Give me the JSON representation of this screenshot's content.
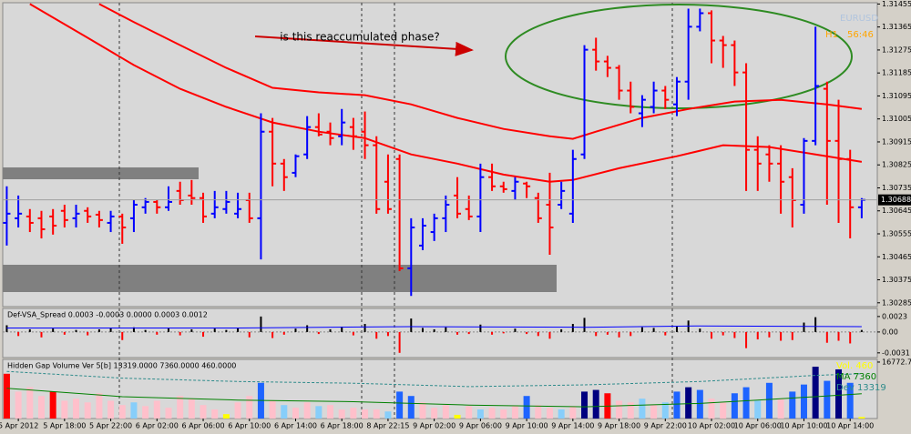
{
  "chart_data": [
    {
      "type": "ohlc",
      "symbol": "EURUSD",
      "timeframe": "H1",
      "timer": "56:46",
      "annotation": "is this reaccumulated phase?",
      "xlim": [
        -0.35,
        75.35
      ],
      "ylim": [
        1.3027,
        1.3146
      ],
      "yticks": [
        1.31455,
        1.31365,
        1.31275,
        1.31185,
        1.31095,
        1.31005,
        1.30915,
        1.30825,
        1.30735,
        1.30645,
        1.30555,
        1.30465,
        1.30375,
        1.30285
      ],
      "last_price": 1.30688,
      "color_up": "#0000ff",
      "color_down": "#ff0000",
      "open": [
        1.30598,
        1.30616,
        1.30623,
        1.30616,
        1.30623,
        1.30645,
        1.30616,
        1.30645,
        1.3063,
        1.30598,
        1.30623,
        1.30616,
        1.30659,
        1.3068,
        1.30659,
        1.30723,
        1.30705,
        1.30695,
        1.30634,
        1.30652,
        1.30634,
        1.30687,
        1.30616,
        1.30955,
        1.3083,
        1.30794,
        1.30866,
        1.30973,
        1.30955,
        1.30937,
        1.30973,
        1.30955,
        1.30902,
        1.30759,
        1.30848,
        1.3042,
        1.30509,
        1.30562,
        1.30616,
        1.30705,
        1.30652,
        1.30623,
        1.30777,
        1.30741,
        1.30723,
        1.30752,
        1.30695,
        1.30669,
        1.30669,
        1.30634,
        1.30866,
        1.31276,
        1.3123,
        1.31205,
        1.31116,
        1.31027,
        1.31052,
        1.31116,
        1.31062,
        1.31151,
        1.31366,
        1.31419,
        1.31312,
        1.31294,
        1.31187,
        1.30884,
        1.30866,
        1.3083,
        1.30777,
        1.30669,
        1.30919,
        1.31123,
        1.30919,
        1.30848,
        1.30659
      ],
      "high": [
        1.30741,
        1.30705,
        1.30652,
        1.30645,
        1.30652,
        1.30669,
        1.30669,
        1.30659,
        1.30645,
        1.30645,
        1.30634,
        1.30687,
        1.30695,
        1.30687,
        1.30741,
        1.30759,
        1.30766,
        1.30716,
        1.30723,
        1.30723,
        1.30716,
        1.30716,
        1.31027,
        1.31009,
        1.30848,
        1.30866,
        1.31016,
        1.31027,
        1.30991,
        1.31044,
        1.31009,
        1.31034,
        1.30937,
        1.30866,
        1.30866,
        1.30616,
        1.30616,
        1.30634,
        1.30705,
        1.30777,
        1.30705,
        1.3083,
        1.3083,
        1.30759,
        1.30777,
        1.30759,
        1.30716,
        1.30794,
        1.30759,
        1.30884,
        1.31294,
        1.31323,
        1.31252,
        1.31216,
        1.31151,
        1.31098,
        1.31151,
        1.31134,
        1.31169,
        1.31437,
        1.31437,
        1.3143,
        1.3133,
        1.31312,
        1.31223,
        1.30937,
        1.30902,
        1.30902,
        1.30812,
        1.3093,
        1.31366,
        1.31151,
        1.3108,
        1.30884,
        1.30695
      ],
      "low": [
        1.30509,
        1.3058,
        1.30562,
        1.30537,
        1.30552,
        1.3058,
        1.3058,
        1.30598,
        1.3058,
        1.30562,
        1.30516,
        1.30562,
        1.30634,
        1.30634,
        1.30645,
        1.30669,
        1.30669,
        1.30598,
        1.30616,
        1.30634,
        1.30616,
        1.30598,
        1.30455,
        1.30741,
        1.30723,
        1.30777,
        1.30848,
        1.30937,
        1.30902,
        1.30902,
        1.30884,
        1.30848,
        1.30634,
        1.30634,
        1.30409,
        1.30312,
        1.30491,
        1.30527,
        1.30562,
        1.30616,
        1.30609,
        1.30562,
        1.30723,
        1.30716,
        1.30687,
        1.30695,
        1.30598,
        1.30473,
        1.30652,
        1.30598,
        1.30848,
        1.31194,
        1.31169,
        1.3108,
        1.31027,
        1.30973,
        1.31027,
        1.31044,
        1.31016,
        1.3108,
        1.31348,
        1.31223,
        1.31205,
        1.31134,
        1.30723,
        1.30723,
        1.30759,
        1.30634,
        1.3058,
        1.30634,
        1.30902,
        1.30669,
        1.30598,
        1.30537,
        1.30616
      ],
      "close": [
        1.30634,
        1.30634,
        1.30598,
        1.30573,
        1.30587,
        1.30609,
        1.30634,
        1.30623,
        1.30609,
        1.30623,
        1.3058,
        1.30669,
        1.3068,
        1.30659,
        1.3068,
        1.30687,
        1.30695,
        1.30623,
        1.30659,
        1.3068,
        1.30652,
        1.30616,
        1.30955,
        1.3083,
        1.30777,
        1.30859,
        1.30973,
        1.30944,
        1.3093,
        1.30991,
        1.30937,
        1.30902,
        1.30652,
        1.30652,
        1.3042,
        1.3058,
        1.30587,
        1.30616,
        1.30669,
        1.30634,
        1.30623,
        1.30777,
        1.30741,
        1.3073,
        1.30759,
        1.30741,
        1.30616,
        1.3058,
        1.30723,
        1.30848,
        1.31276,
        1.3123,
        1.31205,
        1.31116,
        1.31052,
        1.3108,
        1.31116,
        1.3108,
        1.31151,
        1.31366,
        1.31419,
        1.31312,
        1.31294,
        1.31187,
        1.30884,
        1.3083,
        1.3083,
        1.30759,
        1.30687,
        1.30919,
        1.31134,
        1.30919,
        1.30848,
        1.30659,
        1.30688
      ],
      "lines": [
        {
          "color": "#ff0000",
          "x": [
            2,
            7,
            11,
            15,
            19,
            23,
            27,
            31,
            35,
            39,
            43,
            47,
            49,
            53,
            58,
            62,
            66,
            70,
            74
          ],
          "values": [
            1.31455,
            1.31323,
            1.31216,
            1.31123,
            1.31052,
            1.30991,
            1.30955,
            1.3093,
            1.30866,
            1.3083,
            1.30787,
            1.30759,
            1.30766,
            1.30812,
            1.30859,
            1.30902,
            1.30895,
            1.30866,
            1.30837
          ]
        },
        {
          "color": "#ff0000",
          "x": [
            8,
            11,
            15,
            19,
            23,
            27,
            31,
            35,
            39,
            43,
            47,
            49,
            51,
            55,
            59,
            63,
            67,
            71,
            74
          ],
          "values": [
            1.31455,
            1.31384,
            1.31294,
            1.31205,
            1.31127,
            1.31109,
            1.31098,
            1.31062,
            1.31009,
            1.30966,
            1.30937,
            1.30927,
            1.30955,
            1.31009,
            1.31044,
            1.31073,
            1.3108,
            1.31062,
            1.31044
          ]
        }
      ]
    },
    {
      "type": "bar",
      "title": "Def-VSA_Spread 0.0003 -0.0003 0.0000 0.0003 0.0012",
      "xlim": [
        -0.35,
        75.35
      ],
      "ylim": [
        -0.0038,
        0.0035
      ],
      "yticks": [
        0.0023,
        {
          "value": 0,
          "label": "0.00"
        },
        -0.0031
      ],
      "color_up": "#000000",
      "color_down": "#ff0000",
      "values": [
        0.001,
        -0.0006,
        0.0004,
        -0.0008,
        0.0005,
        -0.0004,
        0.0003,
        -0.0005,
        0.0004,
        0.0006,
        -0.0012,
        0.0007,
        0.0003,
        -0.0004,
        0.0006,
        -0.0005,
        0.0004,
        -0.0007,
        0.0005,
        0.0003,
        0.0006,
        -0.0008,
        0.0023,
        -0.0009,
        -0.0004,
        0.0005,
        0.001,
        -0.0003,
        0.0004,
        0.0008,
        -0.0005,
        0.0012,
        -0.001,
        -0.0006,
        -0.0031,
        0.002,
        0.0006,
        0.0004,
        0.0007,
        -0.0004,
        -0.0003,
        0.0011,
        -0.0004,
        -0.0002,
        0.0005,
        -0.0003,
        -0.0006,
        -0.001,
        0.0004,
        0.0012,
        0.0021,
        -0.0006,
        -0.0004,
        -0.0008,
        -0.0006,
        0.0007,
        0.0006,
        -0.0005,
        0.0008,
        0.0017,
        0.0005,
        -0.001,
        -0.0005,
        -0.0009,
        -0.0024,
        -0.0011,
        -0.0008,
        -0.0013,
        -0.0012,
        0.0014,
        0.0022,
        -0.0016,
        -0.0013,
        -0.0017,
        0.0003
      ],
      "lines": [
        {
          "color": "#0000ff",
          "x": [
            0,
            20,
            35,
            50,
            60,
            74
          ],
          "values": [
            0.0006,
            0.0006,
            0.0008,
            0.0007,
            0.0009,
            0.0008
          ]
        }
      ]
    },
    {
      "type": "bar",
      "title": "Hidden Gap Volume Ver 5[b] 13319.0000 7360.0000 460.0000",
      "xlim": [
        -0.35,
        75.35
      ],
      "ylim": [
        0,
        17570
      ],
      "yticks": [
        16772.7
      ],
      "volume_label": "Vol. 460",
      "volume_label_color": "#ffff00",
      "values": [
        13300,
        8000,
        9300,
        6700,
        8000,
        5300,
        5900,
        4800,
        7500,
        5300,
        4000,
        4800,
        3700,
        5300,
        3200,
        6700,
        5900,
        4000,
        2700,
        1300,
        4800,
        6700,
        10600,
        5300,
        4000,
        3200,
        4800,
        3700,
        4000,
        2700,
        3200,
        2700,
        2700,
        2100,
        8000,
        6700,
        4800,
        3200,
        4000,
        1100,
        3700,
        2700,
        3200,
        2700,
        3700,
        6700,
        4000,
        3200,
        2700,
        3700,
        8000,
        8500,
        7500,
        5300,
        4800,
        5900,
        4000,
        4800,
        8000,
        9300,
        8500,
        5900,
        4800,
        7500,
        9300,
        5300,
        10600,
        5900,
        8000,
        10100,
        15400,
        11200,
        14600,
        10600,
        460
      ],
      "colors": [
        "#ff0000",
        "#ffc0cb",
        "#ffc0cb",
        "#ffc0cb",
        "#ff0000",
        "#ffc0cb",
        "#ffc0cb",
        "#ffc0cb",
        "#ffc0cb",
        "#ffc0cb",
        "#ffc0cb",
        "#87cefa",
        "#ffc0cb",
        "#ffc0cb",
        "#ffc0cb",
        "#ffc0cb",
        "#ffc0cb",
        "#ffc0cb",
        "#ffc0cb",
        "#ffff00",
        "#ffc0cb",
        "#ffc0cb",
        "#1e64ff",
        "#ffc0cb",
        "#87cefa",
        "#ffc0cb",
        "#ffc0cb",
        "#87cefa",
        "#ffc0cb",
        "#ffc0cb",
        "#ffc0cb",
        "#ffc0cb",
        "#ffc0cb",
        "#87cefa",
        "#1e64ff",
        "#1e64ff",
        "#ffc0cb",
        "#ffc0cb",
        "#ffc0cb",
        "#ffff00",
        "#ffc0cb",
        "#87cefa",
        "#ffc0cb",
        "#ffc0cb",
        "#ffc0cb",
        "#1e64ff",
        "#ffc0cb",
        "#ffc0cb",
        "#87cefa",
        "#ffc0cb",
        "#00007f",
        "#00007f",
        "#ff0000",
        "#ffc0cb",
        "#ffc0cb",
        "#87cefa",
        "#ffc0cb",
        "#87cefa",
        "#1e64ff",
        "#00007f",
        "#1e64ff",
        "#ffc0cb",
        "#ffc0cb",
        "#1e64ff",
        "#1e64ff",
        "#87cefa",
        "#1e64ff",
        "#ffc0cb",
        "#1e64ff",
        "#1e64ff",
        "#00007f",
        "#1e64ff",
        "#00007f",
        "#1e64ff",
        "#ffff00"
      ],
      "lines": [
        {
          "name": "MA 7360",
          "color": "#008000",
          "x": [
            0,
            10,
            20,
            30,
            40,
            50,
            60,
            65,
            70,
            74
          ],
          "values": [
            9000,
            6500,
            5500,
            5000,
            4000,
            3500,
            4500,
            5500,
            6500,
            7360
          ]
        },
        {
          "name": "Dev 13319",
          "color": "#2e8b8b",
          "dashed": true,
          "x": [
            0,
            10,
            20,
            30,
            40,
            50,
            60,
            70,
            74
          ],
          "values": [
            14000,
            12000,
            11000,
            10500,
            9500,
            10000,
            11000,
            12800,
            13319
          ]
        }
      ],
      "xticks": [
        {
          "value": 1,
          "label": "5 Apr 2012"
        },
        {
          "value": 5,
          "label": "5 Apr 18:00"
        },
        {
          "value": 9,
          "label": "5 Apr 22:00"
        },
        {
          "value": 13,
          "label": "6 Apr 02:00"
        },
        {
          "value": 17,
          "label": "6 Apr 06:00"
        },
        {
          "value": 21,
          "label": "6 Apr 10:00"
        },
        {
          "value": 25,
          "label": "6 Apr 14:00"
        },
        {
          "value": 29,
          "label": "6 Apr 18:00"
        },
        {
          "value": 33,
          "label": "8 Apr 22:15"
        },
        {
          "value": 37,
          "label": "9 Apr 02:00"
        },
        {
          "value": 41,
          "label": "9 Apr 06:00"
        },
        {
          "value": 45,
          "label": "9 Apr 10:00"
        },
        {
          "value": 49,
          "label": "9 Apr 14:00"
        },
        {
          "value": 53,
          "label": "9 Apr 18:00"
        },
        {
          "value": 57,
          "label": "9 Apr 22:00"
        },
        {
          "value": 61,
          "label": "10 Apr 02:00"
        },
        {
          "value": 65,
          "label": "10 Apr 06:00"
        },
        {
          "value": 69,
          "label": "10 Apr 10:00"
        },
        {
          "value": 73,
          "label": "10 Apr 14:00"
        }
      ]
    }
  ]
}
